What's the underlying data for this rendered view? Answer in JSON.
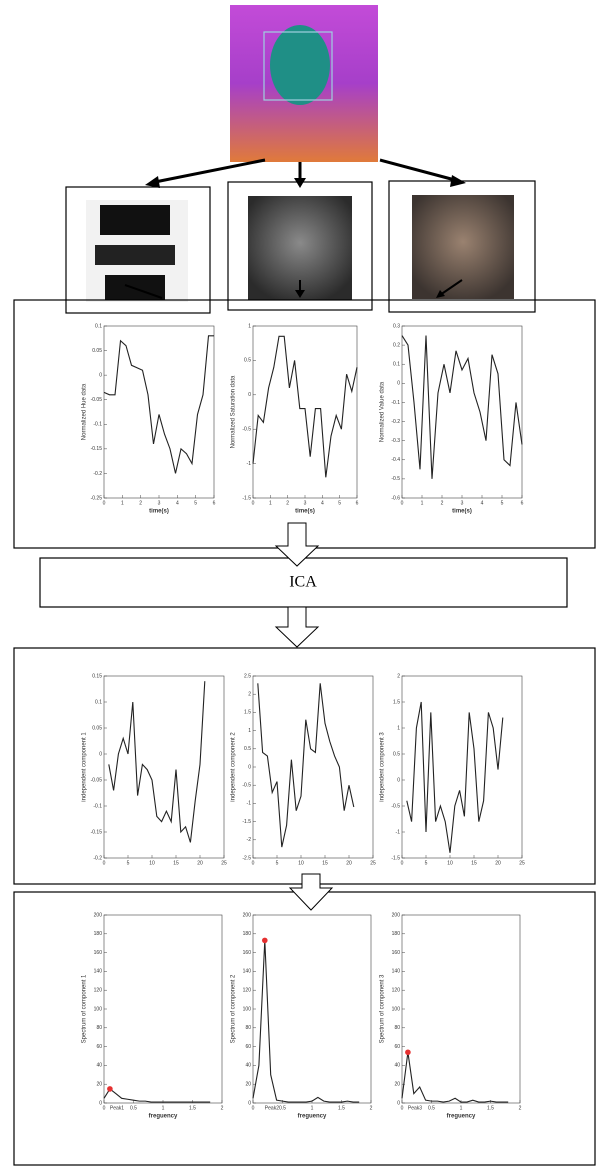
{
  "labels": {
    "ica": "ICA"
  },
  "chart_data": [
    {
      "type": "line",
      "ylabel": "Normalized Hue data",
      "xlabel": "time(s)",
      "color": "#222",
      "x": [
        0,
        0.3,
        0.6,
        0.9,
        1.2,
        1.5,
        1.8,
        2.1,
        2.4,
        2.7,
        3.0,
        3.3,
        3.6,
        3.9,
        4.2,
        4.5,
        4.8,
        5.1,
        5.4,
        5.7,
        6.0
      ],
      "values": [
        -0.035,
        -0.04,
        -0.04,
        0.07,
        0.06,
        0.02,
        0.015,
        0.01,
        -0.04,
        -0.14,
        -0.08,
        -0.12,
        -0.15,
        -0.2,
        -0.15,
        -0.16,
        -0.18,
        -0.08,
        -0.04,
        0.08,
        0.08
      ],
      "xlim": [
        0,
        6
      ],
      "xticks": [
        0,
        1,
        2,
        3,
        4,
        5,
        6
      ],
      "ylim": [
        -0.25,
        0.1
      ],
      "yticks": [
        -0.25,
        -0.2,
        -0.15,
        -0.1,
        -0.05,
        0,
        0.05,
        0.1
      ]
    },
    {
      "type": "line",
      "ylabel": "Normalized Saturation data",
      "xlabel": "time(s)",
      "color": "#222",
      "x": [
        0,
        0.3,
        0.6,
        0.9,
        1.2,
        1.5,
        1.8,
        2.1,
        2.4,
        2.7,
        3.0,
        3.3,
        3.6,
        3.9,
        4.2,
        4.5,
        4.8,
        5.1,
        5.4,
        5.7,
        6.0
      ],
      "values": [
        -1,
        -0.3,
        -0.4,
        0.1,
        0.4,
        0.85,
        0.85,
        0.1,
        0.5,
        -0.2,
        -0.2,
        -0.9,
        -0.2,
        -0.2,
        -1.2,
        -0.6,
        -0.3,
        -0.5,
        0.3,
        0.05,
        0.4
      ],
      "xlim": [
        0,
        6
      ],
      "xticks": [
        0,
        1,
        2,
        3,
        4,
        5,
        6
      ],
      "ylim": [
        -1.5,
        1
      ],
      "yticks": [
        -1.5,
        -1,
        -0.5,
        0,
        0.5,
        1
      ]
    },
    {
      "type": "line",
      "ylabel": "Normalized Value data",
      "xlabel": "time(s)",
      "color": "#222",
      "x": [
        0,
        0.3,
        0.6,
        0.9,
        1.2,
        1.5,
        1.8,
        2.1,
        2.4,
        2.7,
        3.0,
        3.3,
        3.6,
        3.9,
        4.2,
        4.5,
        4.8,
        5.1,
        5.4,
        5.7,
        6.0
      ],
      "values": [
        0.25,
        0.2,
        -0.1,
        -0.45,
        0.25,
        -0.5,
        -0.05,
        0.1,
        -0.05,
        0.17,
        0.07,
        0.13,
        -0.05,
        -0.15,
        -0.3,
        0.15,
        0.05,
        -0.4,
        -0.43,
        -0.1,
        -0.32
      ],
      "xlim": [
        0,
        6
      ],
      "xticks": [
        0,
        1,
        2,
        3,
        4,
        5,
        6
      ],
      "ylim": [
        -0.6,
        0.3
      ],
      "yticks": [
        -0.6,
        -0.5,
        -0.4,
        -0.3,
        -0.2,
        -0.1,
        0,
        0.1,
        0.2,
        0.3
      ]
    },
    {
      "type": "line",
      "ylabel": "independent component 1",
      "color": "#222",
      "x": [
        1,
        2,
        3,
        4,
        5,
        6,
        7,
        8,
        9,
        10,
        11,
        12,
        13,
        14,
        15,
        16,
        17,
        18,
        19,
        20,
        21
      ],
      "values": [
        -0.02,
        -0.07,
        0,
        0.03,
        0,
        0.1,
        -0.08,
        -0.02,
        -0.03,
        -0.05,
        -0.12,
        -0.13,
        -0.11,
        -0.13,
        -0.03,
        -0.15,
        -0.14,
        -0.17,
        -0.09,
        -0.02,
        0.14
      ],
      "xlim": [
        0,
        25
      ],
      "xticks": [
        0,
        5,
        10,
        15,
        20,
        25
      ],
      "ylim": [
        -0.2,
        0.15
      ],
      "yticks": [
        -0.2,
        -0.15,
        -0.1,
        -0.05,
        0,
        0.05,
        0.1,
        0.15
      ]
    },
    {
      "type": "line",
      "ylabel": "independent component 2",
      "color": "#222",
      "x": [
        1,
        2,
        3,
        4,
        5,
        6,
        7,
        8,
        9,
        10,
        11,
        12,
        13,
        14,
        15,
        16,
        17,
        18,
        19,
        20,
        21
      ],
      "values": [
        2.3,
        0.4,
        0.3,
        -0.7,
        -0.4,
        -2.2,
        -1.6,
        0.2,
        -1.2,
        -0.8,
        1.3,
        0.5,
        0.4,
        2.3,
        1.2,
        0.7,
        0.3,
        0,
        -1.2,
        -0.5,
        -1.1
      ],
      "xlim": [
        0,
        25
      ],
      "xticks": [
        0,
        5,
        10,
        15,
        20,
        25
      ],
      "ylim": [
        -2.5,
        2.5
      ],
      "yticks": [
        -2.5,
        -2,
        -1.5,
        -1,
        -0.5,
        0,
        0.5,
        1,
        1.5,
        2,
        2.5
      ]
    },
    {
      "type": "line",
      "ylabel": "independent component 3",
      "color": "#222",
      "x": [
        1,
        2,
        3,
        4,
        5,
        6,
        7,
        8,
        9,
        10,
        11,
        12,
        13,
        14,
        15,
        16,
        17,
        18,
        19,
        20,
        21
      ],
      "values": [
        -0.4,
        -0.8,
        1,
        1.5,
        -1,
        1.3,
        -0.8,
        -0.5,
        -0.8,
        -1.4,
        -0.5,
        -0.2,
        -0.7,
        1.3,
        0.6,
        -0.8,
        -0.4,
        1.3,
        1,
        0.2,
        1.2
      ],
      "xlim": [
        0,
        25
      ],
      "xticks": [
        0,
        5,
        10,
        15,
        20,
        25
      ],
      "ylim": [
        -1.5,
        2
      ],
      "yticks": [
        -1.5,
        -1,
        -0.5,
        0,
        0.5,
        1,
        1.5,
        2
      ]
    },
    {
      "type": "line",
      "ylabel": "Spectrum of component 1",
      "xlabel": "freguency",
      "color": "#222",
      "x": [
        0,
        0.1,
        0.2,
        0.3,
        0.4,
        0.5,
        0.6,
        0.7,
        0.8,
        0.9,
        1.0,
        1.1,
        1.2,
        1.3,
        1.4,
        1.5,
        1.6,
        1.7,
        1.8
      ],
      "values": [
        5,
        15,
        10,
        5,
        4,
        3,
        2,
        2,
        1,
        1,
        1,
        1,
        1,
        1,
        1,
        1,
        1,
        1,
        1
      ],
      "peak": {
        "x": 0.1,
        "y": 15,
        "label": "Peak1",
        "color": "#e53030"
      },
      "xlim": [
        0,
        2
      ],
      "xticks": [
        0,
        0.5,
        1,
        1.5,
        2
      ],
      "ylim": [
        0,
        200
      ],
      "yticks": [
        0,
        20,
        40,
        60,
        80,
        100,
        120,
        140,
        160,
        180,
        200
      ]
    },
    {
      "type": "line",
      "ylabel": "Spectrum of component 2",
      "xlabel": "freguency",
      "color": "#222",
      "x": [
        0,
        0.1,
        0.2,
        0.3,
        0.4,
        0.5,
        0.6,
        0.7,
        0.8,
        0.9,
        1.0,
        1.1,
        1.2,
        1.3,
        1.4,
        1.5,
        1.6,
        1.7,
        1.8
      ],
      "values": [
        5,
        40,
        173,
        30,
        3,
        2,
        1,
        1,
        1,
        1,
        2,
        6,
        2,
        1,
        1,
        1,
        2,
        1,
        1
      ],
      "peak": {
        "x": 0.2,
        "y": 173,
        "label": "Peak2",
        "color": "#e53030"
      },
      "xlim": [
        0,
        2
      ],
      "xticks": [
        0,
        0.5,
        1,
        1.5,
        2
      ],
      "ylim": [
        0,
        200
      ],
      "yticks": [
        0,
        20,
        40,
        60,
        80,
        100,
        120,
        140,
        160,
        180,
        200
      ]
    },
    {
      "type": "line",
      "ylabel": "Spectrum of component 3",
      "xlabel": "freguency",
      "color": "#222",
      "x": [
        0,
        0.1,
        0.2,
        0.3,
        0.4,
        0.5,
        0.6,
        0.7,
        0.8,
        0.9,
        1.0,
        1.1,
        1.2,
        1.3,
        1.4,
        1.5,
        1.6,
        1.7,
        1.8
      ],
      "values": [
        5,
        54,
        10,
        17,
        3,
        2,
        2,
        1,
        2,
        5,
        1,
        1,
        3,
        1,
        1,
        2,
        1,
        1,
        1
      ],
      "peak": {
        "x": 0.1,
        "y": 54,
        "label": "Peak3",
        "color": "#e53030"
      },
      "xlim": [
        0,
        2
      ],
      "xticks": [
        0,
        0.5,
        1,
        1.5,
        2
      ],
      "ylim": [
        0,
        200
      ],
      "yticks": [
        0,
        20,
        40,
        60,
        80,
        100,
        120,
        140,
        160,
        180,
        200
      ]
    }
  ]
}
